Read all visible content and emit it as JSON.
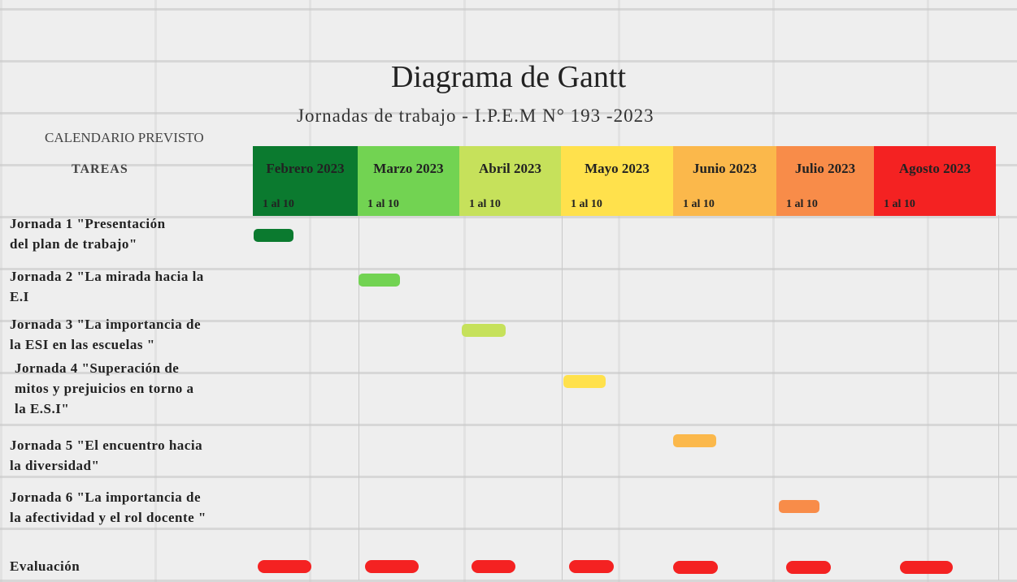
{
  "header": {
    "title": "Diagrama de Gantt",
    "subtitle": "Jornadas de trabajo - I.P.E.M N° 193 -2023"
  },
  "calendar_label": "CALENDARIO PREVISTO",
  "tasks_label": "TAREAS",
  "months": [
    {
      "name": "Febrero 2023",
      "range": "1 al 10",
      "color": "#0b7a2f"
    },
    {
      "name": "Marzo 2023",
      "range": "1 al 10",
      "color": "#72d352"
    },
    {
      "name": "Abril 2023",
      "range": "1 al 10",
      "color": "#c6e15b"
    },
    {
      "name": "Mayo 2023",
      "range": "1 al 10",
      "color": "#ffe14c"
    },
    {
      "name": "Junio 2023",
      "range": "1 al 10",
      "color": "#fbb84b"
    },
    {
      "name": "Julio 2023",
      "range": "1 al 10",
      "color": "#f88c49"
    },
    {
      "name": "Agosto 2023",
      "range": "1 al 10",
      "color": "#f42222"
    }
  ],
  "tasks": [
    {
      "lines": [
        "Jornada 1  \"Presentación",
        "del plan de trabajo\""
      ]
    },
    {
      "lines": [
        "Jornada 2 \"La mirada hacia la",
        "E.I"
      ]
    },
    {
      "lines": [
        "Jornada 3 \"La importancia de",
        "la ESI en las escuelas \""
      ]
    },
    {
      "lines": [
        "Jornada 4 \"Superación de",
        "mitos y prejuicios en torno a",
        "la E.S.I\""
      ]
    },
    {
      "lines": [
        "Jornada 5 \"El encuentro hacia",
        "la diversidad\""
      ]
    },
    {
      "lines": [
        "Jornada 6 \"La importancia de",
        "la afectividad y el rol docente \""
      ]
    },
    {
      "lines": [
        "Evaluación"
      ]
    }
  ]
}
